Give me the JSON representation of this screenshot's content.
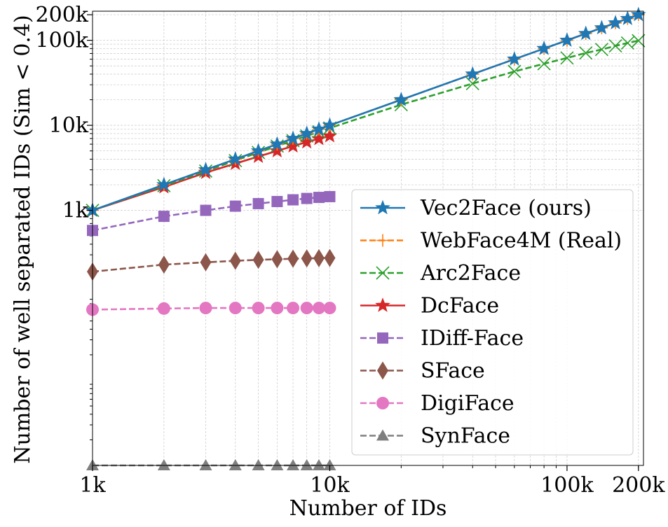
{
  "chart_data": {
    "type": "line",
    "xlabel": "Number of IDs",
    "ylabel": "Number of well separated IDs (Sim < 0.4)",
    "x_scale": "log",
    "y_scale": "log",
    "xlim": [
      1000,
      210000
    ],
    "ylim": [
      1,
      220000
    ],
    "xticks": [
      {
        "value": 1000,
        "label": "1k"
      },
      {
        "value": 10000,
        "label": "10k"
      },
      {
        "value": 100000,
        "label": "100k"
      },
      {
        "value": 200000,
        "label": "200k"
      }
    ],
    "yticks": [
      {
        "value": 1000,
        "label": "1k"
      },
      {
        "value": 10000,
        "label": "10k"
      },
      {
        "value": 100000,
        "label": "100k"
      },
      {
        "value": 200000,
        "label": "200k"
      }
    ],
    "grid": true,
    "legend_position": "lower-right",
    "series": [
      {
        "name": "Vec2Face (ours)",
        "color": "#1f77b4",
        "dashed": false,
        "marker": "star",
        "x": [
          1000,
          2000,
          3000,
          4000,
          5000,
          6000,
          7000,
          8000,
          9000,
          10000,
          20000,
          40000,
          60000,
          80000,
          100000,
          120000,
          140000,
          160000,
          180000,
          200000
        ],
        "y": [
          1000,
          2000,
          3000,
          4000,
          5000,
          6000,
          7000,
          8000,
          9000,
          10000,
          20000,
          40000,
          60000,
          80000,
          100000,
          120000,
          140000,
          160000,
          180000,
          200000
        ]
      },
      {
        "name": "WebFace4M (Real)",
        "color": "#ff7f0e",
        "dashed": true,
        "marker": "plus",
        "x": [
          1000,
          2000,
          3000,
          4000,
          5000,
          6000,
          7000,
          8000,
          9000,
          10000,
          20000,
          40000,
          60000,
          80000,
          100000,
          120000,
          140000,
          160000,
          180000,
          200000
        ],
        "y": [
          1000,
          2000,
          3000,
          4000,
          5000,
          6000,
          7000,
          8000,
          9000,
          10000,
          20000,
          40000,
          60000,
          80000,
          100000,
          120000,
          140000,
          160000,
          180000,
          200000
        ]
      },
      {
        "name": "Arc2Face",
        "color": "#2ca02c",
        "dashed": true,
        "marker": "x",
        "x": [
          1000,
          2000,
          3000,
          4000,
          5000,
          6000,
          7000,
          8000,
          9000,
          10000,
          20000,
          40000,
          60000,
          80000,
          100000,
          120000,
          140000,
          160000,
          180000,
          200000
        ],
        "y": [
          1000,
          1950,
          2900,
          3850,
          4800,
          5700,
          6600,
          7500,
          8400,
          9300,
          17500,
          31000,
          43000,
          53000,
          62000,
          71000,
          78000,
          86000,
          93000,
          99000
        ]
      },
      {
        "name": "DcFace",
        "color": "#d62728",
        "dashed": false,
        "marker": "star",
        "x": [
          1000,
          2000,
          3000,
          4000,
          5000,
          6000,
          7000,
          8000,
          9000,
          10000
        ],
        "y": [
          1000,
          1880,
          2780,
          3550,
          4300,
          5000,
          5700,
          6350,
          6950,
          7500
        ]
      },
      {
        "name": "IDiff-Face",
        "color": "#9467bd",
        "dashed": true,
        "marker": "square",
        "x": [
          1000,
          2000,
          3000,
          4000,
          5000,
          6000,
          7000,
          8000,
          9000,
          10000
        ],
        "y": [
          580,
          850,
          1000,
          1120,
          1200,
          1270,
          1330,
          1380,
          1420,
          1450
        ]
      },
      {
        "name": "SFace",
        "color": "#8c564b",
        "dashed": true,
        "marker": "diamond",
        "x": [
          1000,
          2000,
          3000,
          4000,
          5000,
          6000,
          7000,
          8000,
          9000,
          10000
        ],
        "y": [
          190,
          230,
          245,
          255,
          262,
          266,
          270,
          272,
          274,
          275
        ]
      },
      {
        "name": "DigiFace",
        "color": "#e377c2",
        "dashed": true,
        "marker": "circle",
        "x": [
          1000,
          2000,
          3000,
          4000,
          5000,
          6000,
          7000,
          8000,
          9000,
          10000
        ],
        "y": [
          68,
          70,
          71,
          71,
          71,
          71,
          71,
          71,
          71,
          71
        ]
      },
      {
        "name": "SynFace",
        "color": "#7f7f7f",
        "dashed": true,
        "marker": "triangle",
        "x": [
          1000,
          2000,
          3000,
          4000,
          5000,
          6000,
          7000,
          8000,
          9000,
          10000
        ],
        "y": [
          1,
          1,
          1,
          1,
          1,
          1,
          1,
          1,
          1,
          1
        ]
      }
    ]
  }
}
